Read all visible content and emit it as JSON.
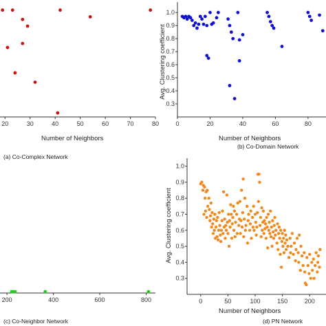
{
  "chart_data": [
    {
      "id": "a",
      "type": "scatter",
      "caption": "(a) Co-Complex Network",
      "xlabel": "Number of Neighbors",
      "ylabel": "",
      "xlim": [
        18,
        80
      ],
      "ylim": [
        0.2,
        1.05
      ],
      "xticks": [
        20,
        30,
        40,
        50,
        60,
        70,
        80
      ],
      "yticks": [],
      "color": "#cc1111",
      "points": [
        [
          19,
          1.0
        ],
        [
          23,
          1.0
        ],
        [
          27,
          0.93
        ],
        [
          29,
          0.88
        ],
        [
          27,
          0.75
        ],
        [
          21,
          0.72
        ],
        [
          24,
          0.53
        ],
        [
          32,
          0.46
        ],
        [
          42,
          1.0
        ],
        [
          41,
          0.23
        ],
        [
          54,
          0.95
        ],
        [
          78,
          1.0
        ]
      ]
    },
    {
      "id": "b",
      "type": "scatter",
      "caption": "(b) Co-Domain Network",
      "xlabel": "Number of Neighbors",
      "ylabel": "Avg. Clustering coefficient",
      "xlim": [
        0,
        91
      ],
      "ylim": [
        0.2,
        1.08
      ],
      "xticks": [
        0,
        20,
        40,
        60,
        80
      ],
      "yticks": [
        0.3,
        0.4,
        0.5,
        0.6,
        0.7,
        0.8,
        0.9,
        1.0
      ],
      "color": "#1111cc",
      "points": [
        [
          3,
          0.97
        ],
        [
          4,
          0.96
        ],
        [
          5,
          0.97
        ],
        [
          6,
          0.95
        ],
        [
          7,
          0.97
        ],
        [
          8,
          0.96
        ],
        [
          9,
          0.94
        ],
        [
          10,
          0.9
        ],
        [
          11,
          0.92
        ],
        [
          12,
          0.88
        ],
        [
          13,
          0.91
        ],
        [
          14,
          0.97
        ],
        [
          15,
          0.95
        ],
        [
          16,
          0.91
        ],
        [
          17,
          0.97
        ],
        [
          18,
          0.9
        ],
        [
          20,
          1.0
        ],
        [
          21,
          0.91
        ],
        [
          22,
          0.92
        ],
        [
          24,
          0.96
        ],
        [
          25,
          1.0
        ],
        [
          18,
          0.67
        ],
        [
          19,
          0.65
        ],
        [
          31,
          0.95
        ],
        [
          32,
          0.9
        ],
        [
          33,
          0.85
        ],
        [
          34,
          0.8
        ],
        [
          37,
          1.0
        ],
        [
          38,
          0.63
        ],
        [
          38,
          0.79
        ],
        [
          40,
          0.83
        ],
        [
          32,
          0.44
        ],
        [
          35,
          0.34
        ],
        [
          55,
          1.0
        ],
        [
          56,
          0.97
        ],
        [
          57,
          0.93
        ],
        [
          58,
          0.9
        ],
        [
          59,
          0.88
        ],
        [
          64,
          0.74
        ],
        [
          80,
          1.0
        ],
        [
          81,
          0.97
        ],
        [
          82,
          0.94
        ],
        [
          87,
          0.98
        ],
        [
          89,
          0.86
        ]
      ]
    },
    {
      "id": "c",
      "type": "scatter",
      "caption": "(c) Co-Neighbor Network",
      "xlabel": "",
      "ylabel": "",
      "xlim": [
        170,
        840
      ],
      "ylim": [
        0,
        1
      ],
      "xticks": [
        200,
        400,
        600,
        800
      ],
      "yticks": [],
      "color": "#22cc22",
      "points": [
        [
          220,
          0.03
        ],
        [
          227,
          0.03
        ],
        [
          235,
          0.03
        ],
        [
          365,
          0.025
        ],
        [
          810,
          0.025
        ]
      ]
    },
    {
      "id": "d",
      "type": "scatter",
      "caption": "(d) PN Network",
      "xlabel": "Number of Neighbors",
      "ylabel": "Avg. Clustering coefficient",
      "xlim": [
        -25,
        230
      ],
      "ylim": [
        0.2,
        1.05
      ],
      "xticks": [
        0,
        50,
        100,
        150,
        200
      ],
      "yticks": [
        0.3,
        0.4,
        0.5,
        0.6,
        0.7,
        0.8,
        0.9,
        1.0
      ],
      "color": "#f08a1e",
      "points": [
        [
          0,
          0.89
        ],
        [
          2,
          0.9
        ],
        [
          4,
          0.85
        ],
        [
          5,
          0.88
        ],
        [
          7,
          0.87
        ],
        [
          8,
          0.8
        ],
        [
          10,
          0.84
        ],
        [
          12,
          0.85
        ],
        [
          6,
          0.7
        ],
        [
          9,
          0.72
        ],
        [
          11,
          0.68
        ],
        [
          13,
          0.75
        ],
        [
          15,
          0.8
        ],
        [
          16,
          0.73
        ],
        [
          17,
          0.66
        ],
        [
          18,
          0.69
        ],
        [
          19,
          0.77
        ],
        [
          20,
          0.62
        ],
        [
          21,
          0.71
        ],
        [
          22,
          0.64
        ],
        [
          23,
          0.58
        ],
        [
          24,
          0.67
        ],
        [
          25,
          0.6
        ],
        [
          26,
          0.7
        ],
        [
          27,
          0.55
        ],
        [
          28,
          0.62
        ],
        [
          29,
          0.66
        ],
        [
          30,
          0.56
        ],
        [
          31,
          0.68
        ],
        [
          32,
          0.54
        ],
        [
          33,
          0.6
        ],
        [
          34,
          0.71
        ],
        [
          35,
          0.63
        ],
        [
          36,
          0.57
        ],
        [
          37,
          0.53
        ],
        [
          38,
          0.6
        ],
        [
          39,
          0.66
        ],
        [
          40,
          0.72
        ],
        [
          41,
          0.58
        ],
        [
          42,
          0.84
        ],
        [
          43,
          0.62
        ],
        [
          44,
          0.67
        ],
        [
          45,
          0.55
        ],
        [
          46,
          0.63
        ],
        [
          47,
          0.6
        ],
        [
          48,
          0.82
        ],
        [
          49,
          0.65
        ],
        [
          50,
          0.58
        ],
        [
          51,
          0.7
        ],
        [
          52,
          0.5
        ],
        [
          53,
          0.66
        ],
        [
          54,
          0.62
        ],
        [
          55,
          0.76
        ],
        [
          56,
          0.7
        ],
        [
          57,
          0.55
        ],
        [
          58,
          0.64
        ],
        [
          59,
          0.68
        ],
        [
          60,
          0.75
        ],
        [
          61,
          0.6
        ],
        [
          62,
          0.72
        ],
        [
          63,
          0.56
        ],
        [
          64,
          0.65
        ],
        [
          66,
          0.7
        ],
        [
          67,
          0.58
        ],
        [
          68,
          0.77
        ],
        [
          70,
          0.63
        ],
        [
          71,
          0.67
        ],
        [
          72,
          0.78
        ],
        [
          73,
          0.58
        ],
        [
          74,
          0.66
        ],
        [
          75,
          0.85
        ],
        [
          76,
          0.62
        ],
        [
          77,
          0.71
        ],
        [
          78,
          0.92
        ],
        [
          79,
          0.56
        ],
        [
          80,
          0.67
        ],
        [
          81,
          0.8
        ],
        [
          82,
          0.6
        ],
        [
          83,
          0.63
        ],
        [
          85,
          0.75
        ],
        [
          86,
          0.52
        ],
        [
          87,
          0.66
        ],
        [
          88,
          0.7
        ],
        [
          90,
          0.6
        ],
        [
          91,
          0.64
        ],
        [
          92,
          0.72
        ],
        [
          93,
          0.55
        ],
        [
          95,
          0.68
        ],
        [
          96,
          0.62
        ],
        [
          97,
          0.75
        ],
        [
          98,
          0.6
        ],
        [
          100,
          0.7
        ],
        [
          101,
          0.65
        ],
        [
          102,
          0.57
        ],
        [
          103,
          0.62
        ],
        [
          104,
          0.71
        ],
        [
          105,
          0.95
        ],
        [
          107,
          0.95
        ],
        [
          108,
          0.9
        ],
        [
          106,
          0.78
        ],
        [
          109,
          0.63
        ],
        [
          110,
          0.68
        ],
        [
          111,
          0.56
        ],
        [
          112,
          0.74
        ],
        [
          113,
          0.6
        ],
        [
          114,
          0.65
        ],
        [
          115,
          0.72
        ],
        [
          116,
          0.58
        ],
        [
          117,
          0.66
        ],
        [
          118,
          0.61
        ],
        [
          119,
          0.64
        ],
        [
          120,
          0.55
        ],
        [
          121,
          0.68
        ],
        [
          122,
          0.62
        ],
        [
          123,
          0.49
        ],
        [
          124,
          0.7
        ],
        [
          125,
          0.6
        ],
        [
          126,
          0.65
        ],
        [
          127,
          0.58
        ],
        [
          128,
          0.72
        ],
        [
          129,
          0.56
        ],
        [
          130,
          0.62
        ],
        [
          131,
          0.5
        ],
        [
          132,
          0.66
        ],
        [
          133,
          0.59
        ],
        [
          134,
          0.55
        ],
        [
          135,
          0.63
        ],
        [
          136,
          0.68
        ],
        [
          137,
          0.57
        ],
        [
          138,
          0.6
        ],
        [
          140,
          0.52
        ],
        [
          141,
          0.64
        ],
        [
          142,
          0.48
        ],
        [
          143,
          0.58
        ],
        [
          144,
          0.62
        ],
        [
          145,
          0.55
        ],
        [
          146,
          0.45
        ],
        [
          147,
          0.6
        ],
        [
          148,
          0.37
        ],
        [
          149,
          0.53
        ],
        [
          150,
          0.58
        ],
        [
          151,
          0.5
        ],
        [
          152,
          0.55
        ],
        [
          153,
          0.46
        ],
        [
          154,
          0.6
        ],
        [
          155,
          0.52
        ],
        [
          156,
          0.57
        ],
        [
          157,
          0.48
        ],
        [
          158,
          0.54
        ],
        [
          160,
          0.5
        ],
        [
          162,
          0.43
        ],
        [
          164,
          0.55
        ],
        [
          165,
          0.46
        ],
        [
          166,
          0.5
        ],
        [
          168,
          0.58
        ],
        [
          170,
          0.45
        ],
        [
          172,
          0.52
        ],
        [
          174,
          0.41
        ],
        [
          175,
          0.48
        ],
        [
          177,
          0.55
        ],
        [
          179,
          0.46
        ],
        [
          180,
          0.4
        ],
        [
          181,
          0.57
        ],
        [
          183,
          0.35
        ],
        [
          184,
          0.5
        ],
        [
          186,
          0.44
        ],
        [
          188,
          0.38
        ],
        [
          190,
          0.46
        ],
        [
          191,
          0.34
        ],
        [
          192,
          0.27
        ],
        [
          194,
          0.26
        ],
        [
          195,
          0.43
        ],
        [
          197,
          0.38
        ],
        [
          199,
          0.33
        ],
        [
          200,
          0.45
        ],
        [
          202,
          0.3
        ],
        [
          204,
          0.4
        ],
        [
          205,
          0.35
        ],
        [
          207,
          0.42
        ],
        [
          208,
          0.3
        ],
        [
          210,
          0.38
        ],
        [
          212,
          0.46
        ],
        [
          214,
          0.34
        ],
        [
          215,
          0.4
        ],
        [
          216,
          0.44
        ],
        [
          218,
          0.37
        ],
        [
          219,
          0.48
        ]
      ]
    }
  ]
}
